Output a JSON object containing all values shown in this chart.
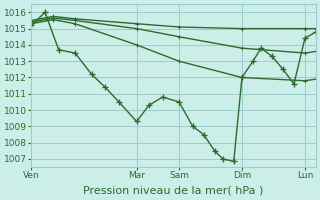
{
  "background_color": "#cceee8",
  "grid_color": "#99cccc",
  "line_color": "#2d6a2d",
  "ylim": [
    1006.5,
    1016.5
  ],
  "yticks": [
    1007,
    1008,
    1009,
    1010,
    1011,
    1012,
    1013,
    1014,
    1015,
    1016
  ],
  "xlabel": "Pression niveau de la mer( hPa )",
  "xlabel_fontsize": 8,
  "tick_fontsize": 6.5,
  "day_labels": [
    "Ven",
    "Mar",
    "Sam",
    "Dim",
    "Lun"
  ],
  "day_positions": [
    0.0,
    0.385,
    0.54,
    0.77,
    1.0
  ],
  "xlim": [
    0,
    1.04
  ],
  "series": [
    {
      "x": [
        0.0,
        0.08,
        0.16,
        0.385,
        0.54,
        0.77,
        1.0,
        1.04
      ],
      "y": [
        1015.5,
        1015.75,
        1015.6,
        1015.3,
        1015.1,
        1015.0,
        1015.0,
        1015.0
      ],
      "marker": false,
      "lw": 1.0
    },
    {
      "x": [
        0.0,
        0.08,
        0.16,
        0.385,
        0.54,
        0.77,
        1.0,
        1.04
      ],
      "y": [
        1015.4,
        1015.65,
        1015.5,
        1015.0,
        1014.5,
        1013.8,
        1013.5,
        1013.6
      ],
      "marker": false,
      "lw": 1.0
    },
    {
      "x": [
        0.0,
        0.08,
        0.16,
        0.385,
        0.54,
        0.77,
        1.0,
        1.04
      ],
      "y": [
        1015.3,
        1015.55,
        1015.3,
        1014.0,
        1013.0,
        1012.0,
        1011.8,
        1011.9
      ],
      "marker": false,
      "lw": 1.0
    },
    {
      "x": [
        0.0,
        0.05,
        0.1,
        0.16,
        0.22,
        0.27,
        0.32,
        0.385,
        0.43,
        0.48,
        0.54,
        0.59,
        0.63,
        0.67,
        0.7,
        0.74,
        0.77,
        0.81,
        0.84,
        0.88,
        0.92,
        0.96,
        1.0,
        1.04
      ],
      "y": [
        1015.2,
        1016.0,
        1013.7,
        1013.5,
        1012.2,
        1011.4,
        1010.5,
        1009.3,
        1010.3,
        1010.8,
        1010.5,
        1009.0,
        1008.5,
        1007.5,
        1007.0,
        1006.85,
        1012.0,
        1013.0,
        1013.8,
        1013.3,
        1012.5,
        1011.6,
        1014.4,
        1014.8
      ],
      "marker": true,
      "lw": 1.0
    }
  ]
}
